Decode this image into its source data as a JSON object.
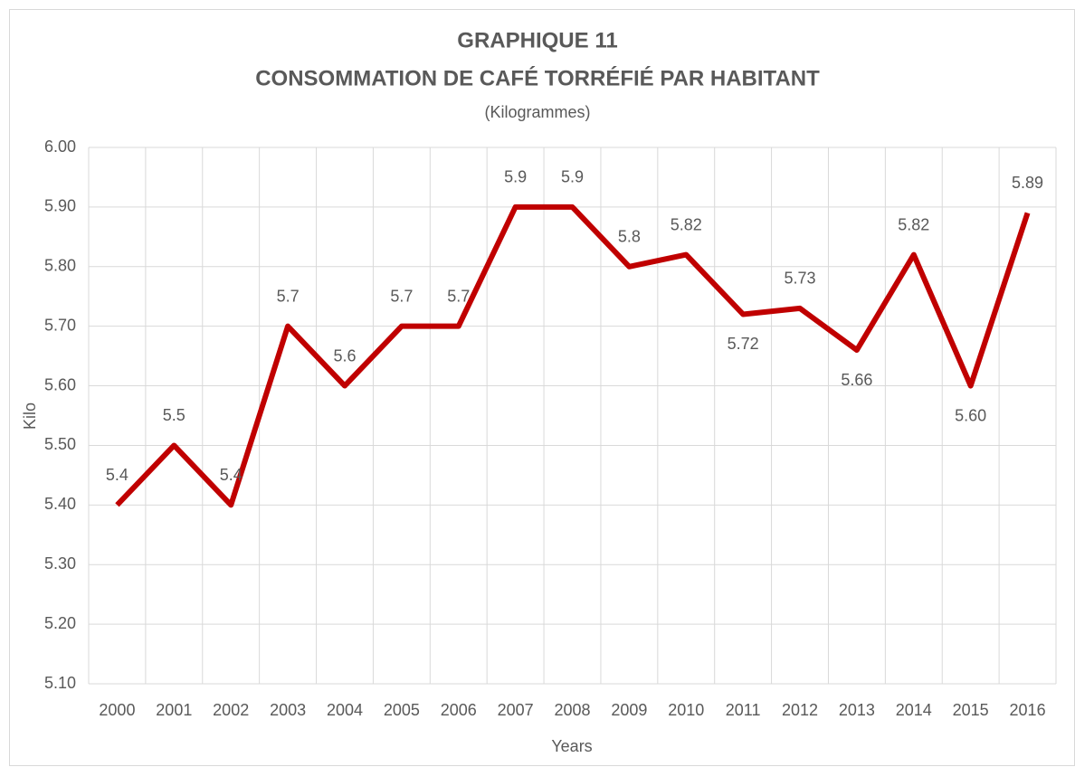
{
  "chart_data": {
    "type": "line",
    "title": "GRAPHIQUE 11",
    "subtitle": "CONSOMMATION DE CAFÉ TORRÉFIÉ PAR HABITANT",
    "unit_note": "(Kilogrammes)",
    "y_label": "Kilo",
    "x_label": "Years",
    "categories": [
      "2000",
      "2001",
      "2002",
      "2003",
      "2004",
      "2005",
      "2006",
      "2007",
      "2008",
      "2009",
      "2010",
      "2011",
      "2012",
      "2013",
      "2014",
      "2015",
      "2016"
    ],
    "values": [
      5.4,
      5.5,
      5.4,
      5.7,
      5.6,
      5.7,
      5.7,
      5.9,
      5.9,
      5.8,
      5.82,
      5.72,
      5.73,
      5.66,
      5.82,
      5.6,
      5.89
    ],
    "value_labels": [
      "5.4",
      "5.5",
      "5.4",
      "5.7",
      "5.6",
      "5.7",
      "5.7",
      "5.9",
      "5.9",
      "5.8",
      "5.82",
      "5.72",
      "5.73",
      "5.66",
      "5.82",
      "5.60",
      "5.89"
    ],
    "color": "#c00000",
    "ylim": [
      5.1,
      6.0
    ],
    "yticks": [
      {
        "value": 5.1,
        "label": "5.10"
      },
      {
        "value": 5.2,
        "label": "5.20"
      },
      {
        "value": 5.3,
        "label": "5.30"
      },
      {
        "value": 5.4,
        "label": "5.40"
      },
      {
        "value": 5.5,
        "label": "5.50"
      },
      {
        "value": 5.6,
        "label": "5.60"
      },
      {
        "value": 5.7,
        "label": "5.70"
      },
      {
        "value": 5.8,
        "label": "5.80"
      },
      {
        "value": 5.9,
        "label": "5.90"
      },
      {
        "value": 6.0,
        "label": "6.00"
      }
    ],
    "grid": true
  }
}
